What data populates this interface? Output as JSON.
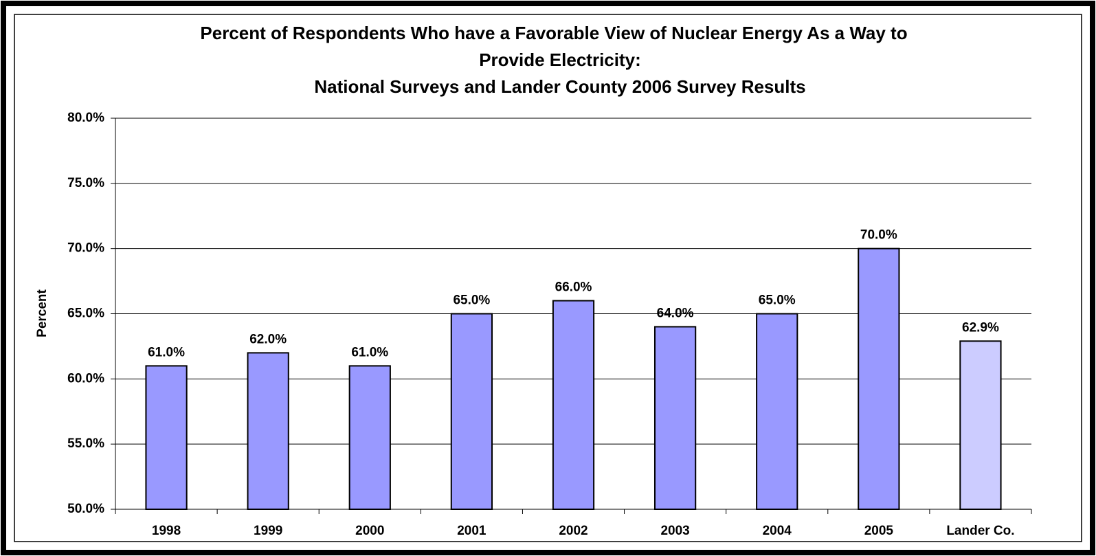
{
  "chart_data": {
    "type": "bar",
    "title": [
      "Percent of Respondents Who have a Favorable View of  Nuclear Energy  As a Way to",
      "Provide Electricity:",
      "National Surveys and Lander County 2006 Survey Results"
    ],
    "ylabel": "Percent",
    "categories": [
      "1998",
      "1999",
      "2000",
      "2001",
      "2002",
      "2003",
      "2004",
      "2005",
      "Lander Co."
    ],
    "values": [
      61,
      62,
      61,
      65,
      66,
      64,
      65,
      70,
      62.9
    ],
    "value_labels": [
      "61.0%",
      "62.0%",
      "61.0%",
      "65.0%",
      "66.0%",
      "64.0%",
      "65.0%",
      "70.0%",
      "62.9%"
    ],
    "colors": [
      "#9999ff",
      "#9999ff",
      "#9999ff",
      "#9999ff",
      "#9999ff",
      "#9999ff",
      "#9999ff",
      "#9999ff",
      "#ccccff"
    ],
    "ylim": [
      50,
      80
    ],
    "yticks": [
      {
        "value": 50,
        "label": "50.0%"
      },
      {
        "value": 55,
        "label": "55.0%"
      },
      {
        "value": 60,
        "label": "60.0%"
      },
      {
        "value": 65,
        "label": "65.0%"
      },
      {
        "value": 70,
        "label": "70.0%"
      },
      {
        "value": 75,
        "label": "75.0%"
      },
      {
        "value": 80,
        "label": "80.0%"
      }
    ],
    "grid": true
  }
}
